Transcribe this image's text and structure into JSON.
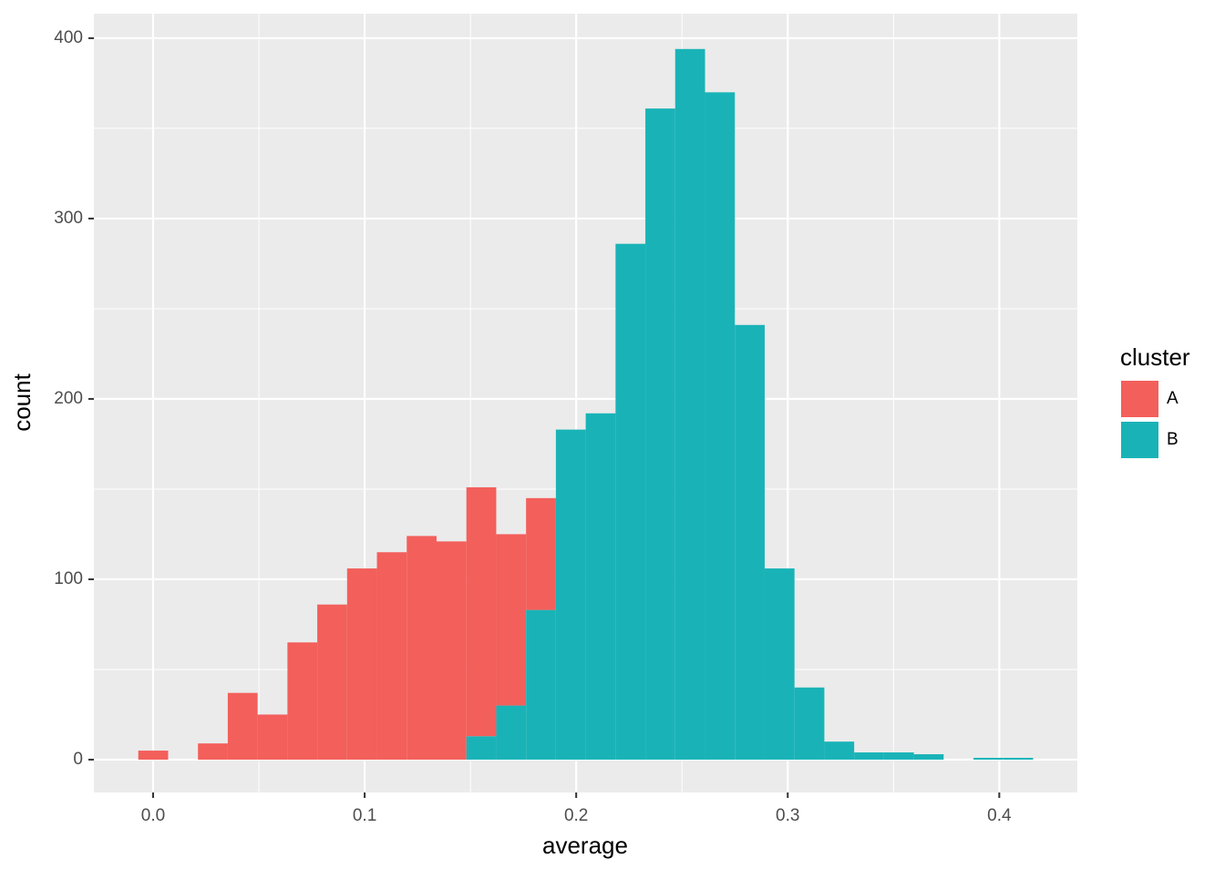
{
  "chart_data": {
    "type": "histogram",
    "stacked": true,
    "x_label": "average",
    "y_label": "count",
    "legend_title": "cluster",
    "bins": [
      -0.007,
      0.0071,
      0.0212,
      0.0353,
      0.0494,
      0.0635,
      0.0776,
      0.0917,
      0.1058,
      0.1199,
      0.134,
      0.1481,
      0.1622,
      0.1763,
      0.1904,
      0.2045,
      0.2186,
      0.2327,
      0.2468,
      0.2609,
      0.275,
      0.2891,
      0.3032,
      0.3173,
      0.3314,
      0.3455,
      0.3596,
      0.3737,
      0.3878,
      0.4019,
      0.416
    ],
    "series": [
      {
        "name": "A",
        "color": "#f35f5b",
        "values": [
          5,
          0,
          9,
          37,
          25,
          65,
          86,
          106,
          115,
          124,
          121,
          138,
          95,
          62,
          0,
          0,
          0,
          0,
          0,
          0,
          0,
          0,
          0,
          0,
          0,
          0,
          0,
          0,
          0,
          0
        ]
      },
      {
        "name": "B",
        "color": "#19b3b7",
        "values": [
          0,
          0,
          0,
          0,
          0,
          0,
          0,
          0,
          0,
          0,
          0,
          13,
          30,
          83,
          183,
          192,
          286,
          361,
          394,
          370,
          241,
          106,
          40,
          10,
          4,
          4,
          3,
          0,
          1,
          1
        ]
      }
    ],
    "stack_order": [
      "B",
      "A"
    ],
    "xlim": [
      -0.028,
      0.4369
    ],
    "ylim": [
      -18.2,
      413.6
    ],
    "xticks": [
      {
        "value": 0,
        "label": "0.0"
      },
      0.1,
      0.2,
      0.3,
      0.4
    ],
    "yticks": [
      0,
      100,
      200,
      300,
      400
    ],
    "grid": true,
    "legend": "right"
  }
}
